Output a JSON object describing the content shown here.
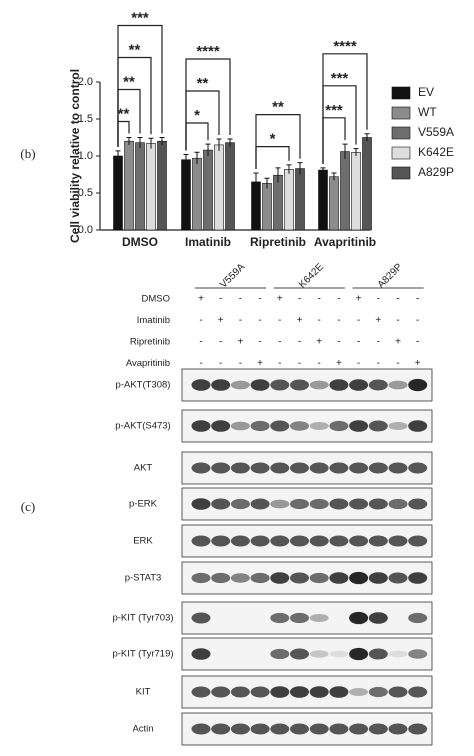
{
  "panels": {
    "b": "(b)",
    "c": "(c)"
  },
  "chart_data": {
    "type": "bar",
    "y_label": "Cell viability relative to control",
    "categories": [
      "DMSO",
      "Imatinib",
      "Ripretinib",
      "Avapritinib"
    ],
    "series": [
      {
        "name": "EV",
        "color": "#111111",
        "values": [
          1.0,
          0.95,
          0.65,
          0.81
        ],
        "errors": [
          0.07,
          0.07,
          0.12,
          0.03
        ]
      },
      {
        "name": "WT",
        "color": "#8c8c8c",
        "values": [
          1.2,
          0.97,
          0.63,
          0.72
        ],
        "errors": [
          0.05,
          0.08,
          0.07,
          0.05
        ]
      },
      {
        "name": "V559A",
        "color": "#6e6e6e",
        "values": [
          1.18,
          1.08,
          0.74,
          1.06
        ],
        "errors": [
          0.07,
          0.08,
          0.1,
          0.1
        ]
      },
      {
        "name": "K642E",
        "color": "#dddddd",
        "values": [
          1.17,
          1.15,
          0.82,
          1.05
        ],
        "errors": [
          0.07,
          0.08,
          0.06,
          0.05
        ]
      },
      {
        "name": "A829P",
        "color": "#555555",
        "values": [
          1.2,
          1.18,
          0.83,
          1.25
        ],
        "errors": [
          0.05,
          0.05,
          0.08,
          0.05
        ]
      }
    ],
    "significance": [
      [
        "**",
        "**",
        "**",
        "***"
      ],
      [
        "*",
        "**",
        "****"
      ],
      [
        "*",
        "**"
      ],
      [
        "***",
        "***",
        "****"
      ]
    ],
    "ylim": [
      0,
      2.0
    ],
    "yticks": [
      {
        "value": 0,
        "label": "0.0"
      },
      {
        "value": 0.5,
        "label": "0.5"
      },
      {
        "value": 1,
        "label": "1.0"
      },
      {
        "value": 1.5,
        "label": "1.5"
      },
      {
        "value": 2,
        "label": "2.0"
      }
    ],
    "legend": "right"
  },
  "blot": {
    "groups": [
      "V559A",
      "K642E",
      "A829P"
    ],
    "treatments": [
      {
        "label": "DMSO",
        "signs": [
          "+",
          "-",
          "-",
          "-",
          "+",
          "-",
          "-",
          "-",
          "+",
          "-",
          "-",
          "-"
        ]
      },
      {
        "label": "Imatinib",
        "signs": [
          "-",
          "+",
          "-",
          "-",
          "-",
          "+",
          "-",
          "-",
          "-",
          "+",
          "-",
          "-"
        ]
      },
      {
        "label": "Ripretinib",
        "signs": [
          "-",
          "-",
          "+",
          "-",
          "-",
          "-",
          "+",
          "-",
          "-",
          "-",
          "+",
          "-"
        ]
      },
      {
        "label": "Avapritinib",
        "signs": [
          "-",
          "-",
          "-",
          "+",
          "-",
          "-",
          "-",
          "+",
          "-",
          "-",
          "-",
          "+"
        ]
      }
    ],
    "rows": [
      "p-AKT(T308)",
      "p-AKT(S473)",
      "AKT",
      "p-ERK",
      "ERK",
      "p-STAT3",
      "p-KIT (Tyr703)",
      "p-KIT (Tyr719)",
      "KIT",
      "Actin"
    ]
  }
}
